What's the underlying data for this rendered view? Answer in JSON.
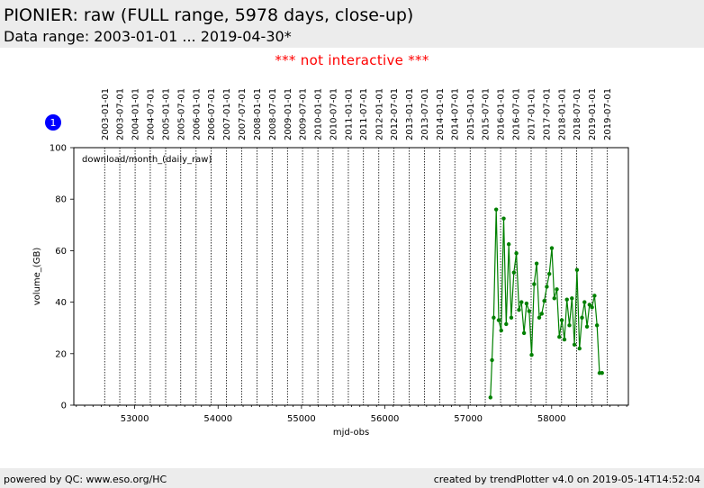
{
  "header": {
    "title": "PIONIER: raw (FULL range, 5978 days, close-up)",
    "subtitle": "Data range: 2003-01-01 ... 2019-04-30*"
  },
  "notice": "*** not interactive ***",
  "badge": {
    "label": "1"
  },
  "footer": {
    "left": "powered by QC: www.eso.org/HC",
    "right": "created by trendPlotter v4.0 on 2019-05-14T14:52:04"
  },
  "colors": {
    "series": "#008000",
    "notice": "#ff0000",
    "badge": "#0000ff",
    "panel_bg": "#ececec"
  },
  "chart_data": {
    "type": "line",
    "annotation": "download/month_(daily_raw)",
    "xlabel": "mjd-obs",
    "ylabel": "volume_(GB)",
    "xlim": [
      52270,
      58920
    ],
    "ylim": [
      0,
      100
    ],
    "x_ticks": [
      53000,
      54000,
      55000,
      56000,
      57000,
      58000
    ],
    "x_tick_labels": [
      "53000",
      "54000",
      "55000",
      "56000",
      "57000",
      "58000"
    ],
    "y_ticks": [
      0,
      20,
      40,
      60,
      80,
      100
    ],
    "y_tick_labels": [
      "0",
      "20",
      "40",
      "60",
      "80",
      "100"
    ],
    "date_markers": [
      {
        "label": "2003-01-01",
        "mjd": 52640
      },
      {
        "label": "2003-07-01",
        "mjd": 52821
      },
      {
        "label": "2004-01-01",
        "mjd": 53005
      },
      {
        "label": "2004-07-01",
        "mjd": 53187
      },
      {
        "label": "2005-01-01",
        "mjd": 53371
      },
      {
        "label": "2005-07-01",
        "mjd": 53552
      },
      {
        "label": "2006-01-01",
        "mjd": 53736
      },
      {
        "label": "2006-07-01",
        "mjd": 53917
      },
      {
        "label": "2007-01-01",
        "mjd": 54101
      },
      {
        "label": "2007-07-01",
        "mjd": 54282
      },
      {
        "label": "2008-01-01",
        "mjd": 54466
      },
      {
        "label": "2008-07-01",
        "mjd": 54648
      },
      {
        "label": "2009-01-01",
        "mjd": 54832
      },
      {
        "label": "2009-07-01",
        "mjd": 55013
      },
      {
        "label": "2010-01-01",
        "mjd": 55197
      },
      {
        "label": "2010-07-01",
        "mjd": 55378
      },
      {
        "label": "2011-01-01",
        "mjd": 55562
      },
      {
        "label": "2011-07-01",
        "mjd": 55743
      },
      {
        "label": "2012-01-01",
        "mjd": 55927
      },
      {
        "label": "2012-07-01",
        "mjd": 56109
      },
      {
        "label": "2013-01-01",
        "mjd": 56293
      },
      {
        "label": "2013-07-01",
        "mjd": 56474
      },
      {
        "label": "2014-01-01",
        "mjd": 56658
      },
      {
        "label": "2014-07-01",
        "mjd": 56839
      },
      {
        "label": "2015-01-01",
        "mjd": 57023
      },
      {
        "label": "2015-07-01",
        "mjd": 57204
      },
      {
        "label": "2016-01-01",
        "mjd": 57388
      },
      {
        "label": "2016-07-01",
        "mjd": 57570
      },
      {
        "label": "2017-01-01",
        "mjd": 57754
      },
      {
        "label": "2017-07-01",
        "mjd": 57935
      },
      {
        "label": "2018-01-01",
        "mjd": 58119
      },
      {
        "label": "2018-07-01",
        "mjd": 58300
      },
      {
        "label": "2019-01-01",
        "mjd": 58484
      },
      {
        "label": "2019-07-01",
        "mjd": 58665
      }
    ],
    "series": [
      {
        "x": [
          57266,
          57285,
          57305,
          57335,
          57365,
          57395,
          57425,
          57455,
          57486,
          57516,
          57547,
          57577,
          57608,
          57638,
          57669,
          57699,
          57730,
          57760,
          57790,
          57820,
          57851,
          57881,
          57912,
          57942,
          57972,
          58002,
          58032,
          58062,
          58092,
          58122,
          58153,
          58183,
          58213,
          58243,
          58273,
          58304,
          58334,
          58364,
          58394,
          58424,
          58454,
          58484,
          58514,
          58544,
          58574,
          58604
        ],
        "y": [
          3,
          17.5,
          34,
          76,
          33,
          29,
          72.5,
          31.5,
          62.5,
          34,
          51.5,
          59,
          37,
          40,
          28,
          39.5,
          36.5,
          19.5,
          47,
          55,
          34,
          35.5,
          40.5,
          46,
          51,
          61,
          41.5,
          45,
          26.5,
          33,
          25.5,
          41,
          31,
          41.5,
          23.5,
          52.5,
          22,
          34,
          40,
          30.5,
          39,
          38,
          42.5,
          31,
          12.5,
          12.5
        ]
      }
    ]
  }
}
